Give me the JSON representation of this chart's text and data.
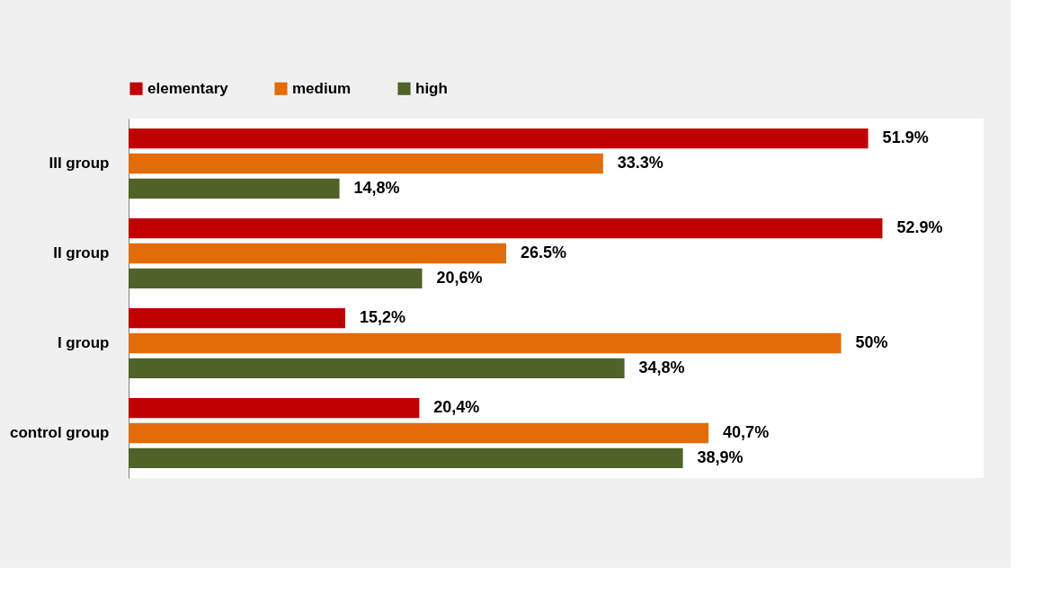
{
  "chart_data": {
    "type": "bar",
    "orientation": "horizontal",
    "categories": [
      "III group",
      "II group",
      "I group",
      "control group"
    ],
    "series": [
      {
        "name": "elementary",
        "color": "#c00000",
        "values": [
          51.9,
          52.9,
          15.2,
          20.4
        ],
        "value_labels": [
          "51.9%",
          "52.9%",
          "15,2%",
          "20,4%"
        ]
      },
      {
        "name": "medium",
        "color": "#e36c09",
        "values": [
          33.3,
          26.5,
          50,
          40.7
        ],
        "value_labels": [
          "33.3%",
          "26.5%",
          "50%",
          "40,7%"
        ]
      },
      {
        "name": "high",
        "color": "#4f6228",
        "values": [
          14.8,
          20.6,
          34.8,
          38.9
        ],
        "value_labels": [
          "14,8%",
          "20,6%",
          "34,8%",
          "38,9%"
        ]
      }
    ],
    "xlim": [
      0,
      60
    ],
    "tick_labels": "y",
    "legend": "top"
  }
}
